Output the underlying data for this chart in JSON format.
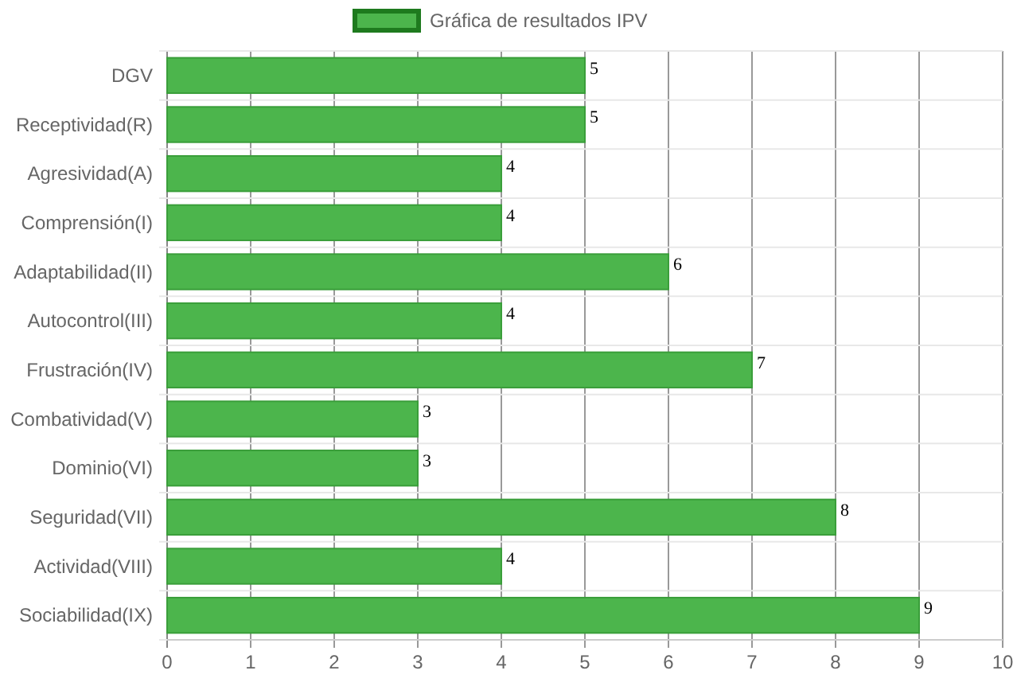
{
  "chart_data": {
    "type": "bar",
    "orientation": "horizontal",
    "categories": [
      "DGV",
      "Receptividad(R)",
      "Agresividad(A)",
      "Comprensión(I)",
      "Adaptabilidad(II)",
      "Autocontrol(III)",
      "Frustración(IV)",
      "Combatividad(V)",
      "Dominio(VI)",
      "Seguridad(VII)",
      "Actividad(VIII)",
      "Sociabilidad(IX)"
    ],
    "series": [
      {
        "name": "Gráfica de resultados IPV",
        "color": "#4cb54c",
        "values": [
          5,
          5,
          4,
          4,
          6,
          4,
          7,
          3,
          3,
          8,
          4,
          9
        ]
      }
    ],
    "xlim": [
      0,
      10
    ],
    "xticks": [
      0,
      1,
      2,
      3,
      4,
      5,
      6,
      7,
      8,
      9,
      10
    ],
    "grid": true,
    "legend": "top",
    "data_labels": true
  }
}
